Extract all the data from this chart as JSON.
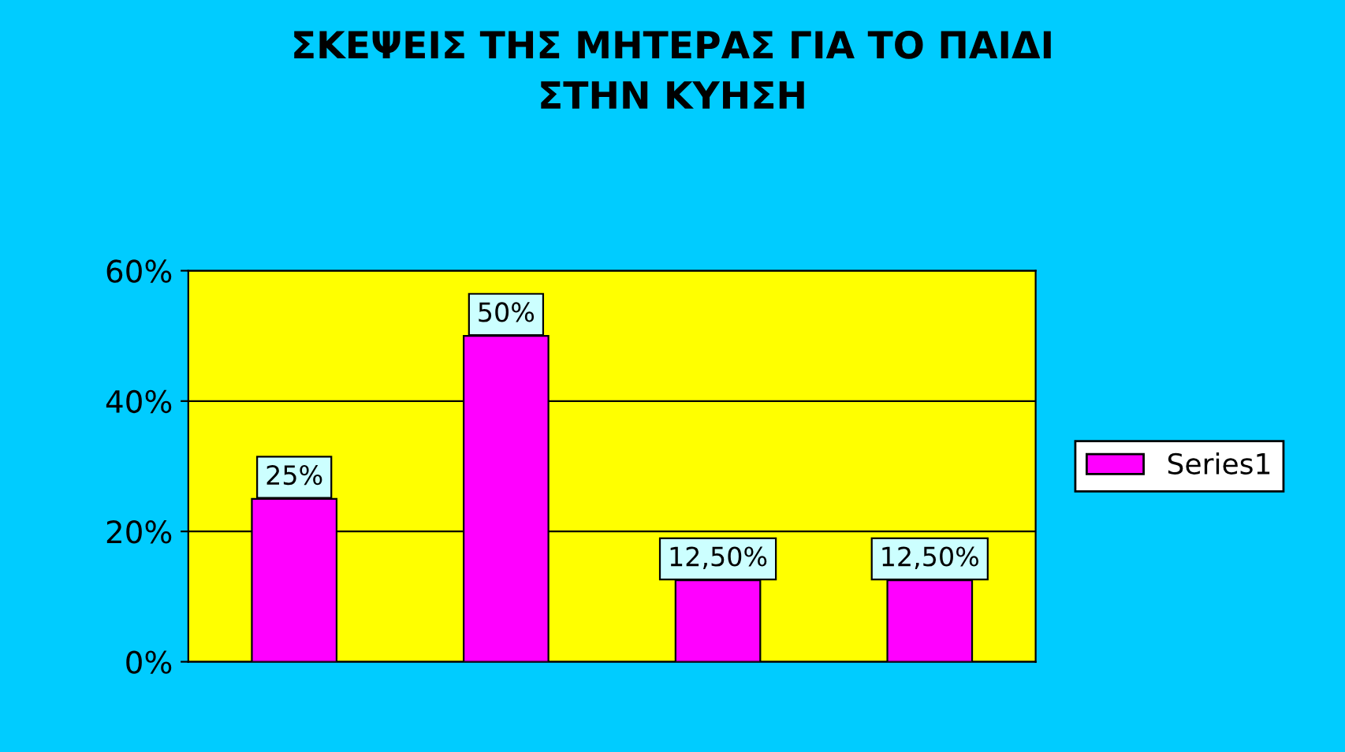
{
  "chart_data": {
    "type": "bar",
    "title": "ΣΚΕΨΕΙΣ ΤΗΣ ΜΗΤΕΡΑΣ ΓΙΑ ΤΟ ΠΑΙΔΙ\nΣΤΗΝ ΚΥΗΣΗ",
    "categories": [
      null,
      null,
      null,
      null
    ],
    "series": [
      {
        "name": "Series1",
        "color": "#ff00ff",
        "values": [
          25,
          50,
          12.5,
          12.5
        ],
        "value_labels": [
          "25%",
          "50%",
          "12,50%",
          "12,50%"
        ]
      }
    ],
    "ylim": [
      0,
      60
    ],
    "yticks": [
      {
        "value": 0,
        "label": "0%"
      },
      {
        "value": 20,
        "label": "20%"
      },
      {
        "value": 40,
        "label": "40%"
      },
      {
        "value": 60,
        "label": "60%"
      }
    ],
    "grid": "y",
    "legend": "right",
    "tick_labels": "y"
  }
}
